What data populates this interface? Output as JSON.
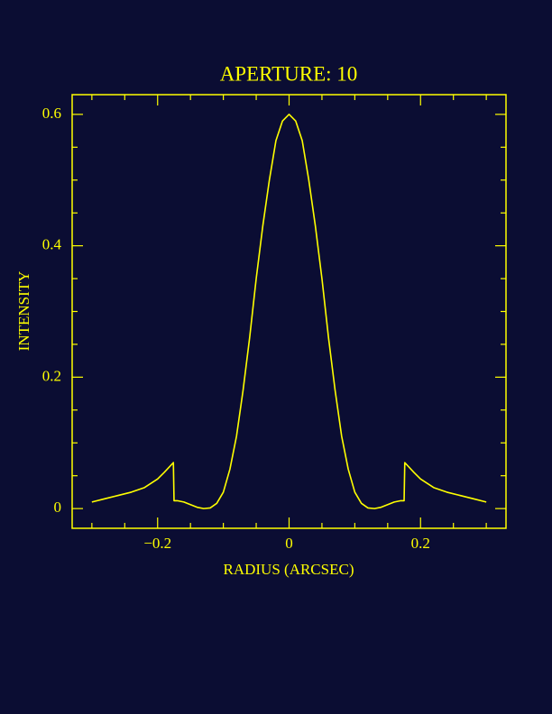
{
  "chart_data": {
    "type": "line",
    "title": "APERTURE:  10",
    "x_label": "RADIUS (ARCSEC)",
    "y_label": "INTENSITY",
    "x": [
      -0.3,
      -0.28,
      -0.26,
      -0.24,
      -0.22,
      -0.2,
      -0.19,
      -0.176,
      -0.175,
      -0.17,
      -0.16,
      -0.15,
      -0.14,
      -0.13,
      -0.12,
      -0.11,
      -0.1,
      -0.09,
      -0.08,
      -0.07,
      -0.06,
      -0.05,
      -0.04,
      -0.03,
      -0.02,
      -0.01,
      0,
      0.01,
      0.02,
      0.03,
      0.04,
      0.05,
      0.06,
      0.07,
      0.08,
      0.09,
      0.1,
      0.11,
      0.12,
      0.13,
      0.14,
      0.15,
      0.16,
      0.17,
      0.175,
      0.176,
      0.19,
      0.2,
      0.22,
      0.24,
      0.26,
      0.28,
      0.3
    ],
    "series": [
      {
        "color": "#ffff00",
        "values": [
          0.01,
          0.015,
          0.02,
          0.025,
          0.032,
          0.045,
          0.055,
          0.07,
          0.012,
          0.012,
          0.01,
          0.006,
          0.002,
          0,
          0.001,
          0.008,
          0.025,
          0.06,
          0.11,
          0.18,
          0.26,
          0.35,
          0.43,
          0.5,
          0.56,
          0.59,
          0.6,
          0.59,
          0.56,
          0.5,
          0.43,
          0.35,
          0.26,
          0.18,
          0.11,
          0.06,
          0.025,
          0.008,
          0.001,
          0,
          0.002,
          0.006,
          0.01,
          0.012,
          0.012,
          0.07,
          0.055,
          0.045,
          0.032,
          0.025,
          0.02,
          0.015,
          0.01
        ]
      }
    ],
    "xlim": [
      -0.33,
      0.33
    ],
    "ylim": [
      -0.03,
      0.63
    ],
    "xticks": [
      {
        "value": -0.2,
        "label": "−0.2"
      },
      0,
      0.2
    ],
    "yticks": [
      0,
      0.2,
      0.4,
      0.6
    ],
    "xminorticks": [
      -0.3,
      -0.25,
      -0.15,
      -0.1,
      -0.05,
      0.05,
      0.1,
      0.15,
      0.25,
      0.3
    ],
    "yminorticks": [
      0.05,
      0.1,
      0.15,
      0.25,
      0.3,
      0.35,
      0.45,
      0.5,
      0.55
    ]
  }
}
